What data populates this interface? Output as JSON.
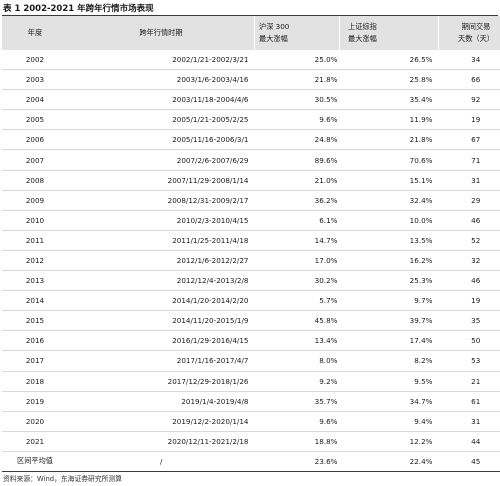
{
  "title": "表 1 2002-2021 年跨年行情市场表现",
  "headers": {
    "year": "年度",
    "period": "跨年行情时期",
    "hs300_line1": "沪深 300",
    "hs300_line2": "最大涨幅",
    "sh_line1": "上证综指",
    "sh_line2": "最大涨幅",
    "days_line1": "期间交易",
    "days_line2": "天数（天）"
  },
  "rows": [
    {
      "year": "2002",
      "period": "2002/1/21-2002/3/21",
      "hs300": "25.0%",
      "sh": "26.5%",
      "days": "34"
    },
    {
      "year": "2003",
      "period": "2003/1/6-2003/4/16",
      "hs300": "21.8%",
      "sh": "25.8%",
      "days": "66"
    },
    {
      "year": "2004",
      "period": "2003/11/18-2004/4/6",
      "hs300": "30.5%",
      "sh": "35.4%",
      "days": "92"
    },
    {
      "year": "2005",
      "period": "2005/1/21-2005/2/25",
      "hs300": "9.6%",
      "sh": "11.9%",
      "days": "19"
    },
    {
      "year": "2006",
      "period": "2005/11/16-2006/3/1",
      "hs300": "24.8%",
      "sh": "21.8%",
      "days": "67"
    },
    {
      "year": "2007",
      "period": "2007/2/6-2007/6/29",
      "hs300": "89.6%",
      "sh": "70.6%",
      "days": "71"
    },
    {
      "year": "2008",
      "period": "2007/11/29-2008/1/14",
      "hs300": "21.0%",
      "sh": "15.1%",
      "days": "31"
    },
    {
      "year": "2009",
      "period": "2008/12/31-2009/2/17",
      "hs300": "36.2%",
      "sh": "32.4%",
      "days": "29"
    },
    {
      "year": "2010",
      "period": "2010/2/3-2010/4/15",
      "hs300": "6.1%",
      "sh": "10.0%",
      "days": "46"
    },
    {
      "year": "2011",
      "period": "2011/1/25-2011/4/18",
      "hs300": "14.7%",
      "sh": "13.5%",
      "days": "52"
    },
    {
      "year": "2012",
      "period": "2012/1/6-2012/2/27",
      "hs300": "17.0%",
      "sh": "16.2%",
      "days": "32"
    },
    {
      "year": "2013",
      "period": "2012/12/4-2013/2/8",
      "hs300": "30.2%",
      "sh": "25.3%",
      "days": "46"
    },
    {
      "year": "2014",
      "period": "2014/1/20-2014/2/20",
      "hs300": "5.7%",
      "sh": "9.7%",
      "days": "19"
    },
    {
      "year": "2015",
      "period": "2014/11/20-2015/1/9",
      "hs300": "45.8%",
      "sh": "39.7%",
      "days": "35"
    },
    {
      "year": "2016",
      "period": "2016/1/29-2016/4/15",
      "hs300": "13.4%",
      "sh": "17.4%",
      "days": "50"
    },
    {
      "year": "2017",
      "period": "2017/1/16-2017/4/7",
      "hs300": "8.0%",
      "sh": "8.2%",
      "days": "53"
    },
    {
      "year": "2018",
      "period": "2017/12/29-2018/1/26",
      "hs300": "9.2%",
      "sh": "9.5%",
      "days": "21"
    },
    {
      "year": "2019",
      "period": "2019/1/4-2019/4/8",
      "hs300": "35.7%",
      "sh": "34.7%",
      "days": "61"
    },
    {
      "year": "2020",
      "period": "2019/12/2-2020/1/14",
      "hs300": "9.6%",
      "sh": "9.4%",
      "days": "31"
    },
    {
      "year": "2021",
      "period": "2020/12/11-2021/2/18",
      "hs300": "18.8%",
      "sh": "12.2%",
      "days": "44"
    }
  ],
  "average": {
    "label": "区间平均值",
    "period": "/",
    "hs300": "23.6%",
    "sh": "22.4%",
    "days": "45"
  },
  "source": "资料来源：Wind，东海证券研究所测算"
}
